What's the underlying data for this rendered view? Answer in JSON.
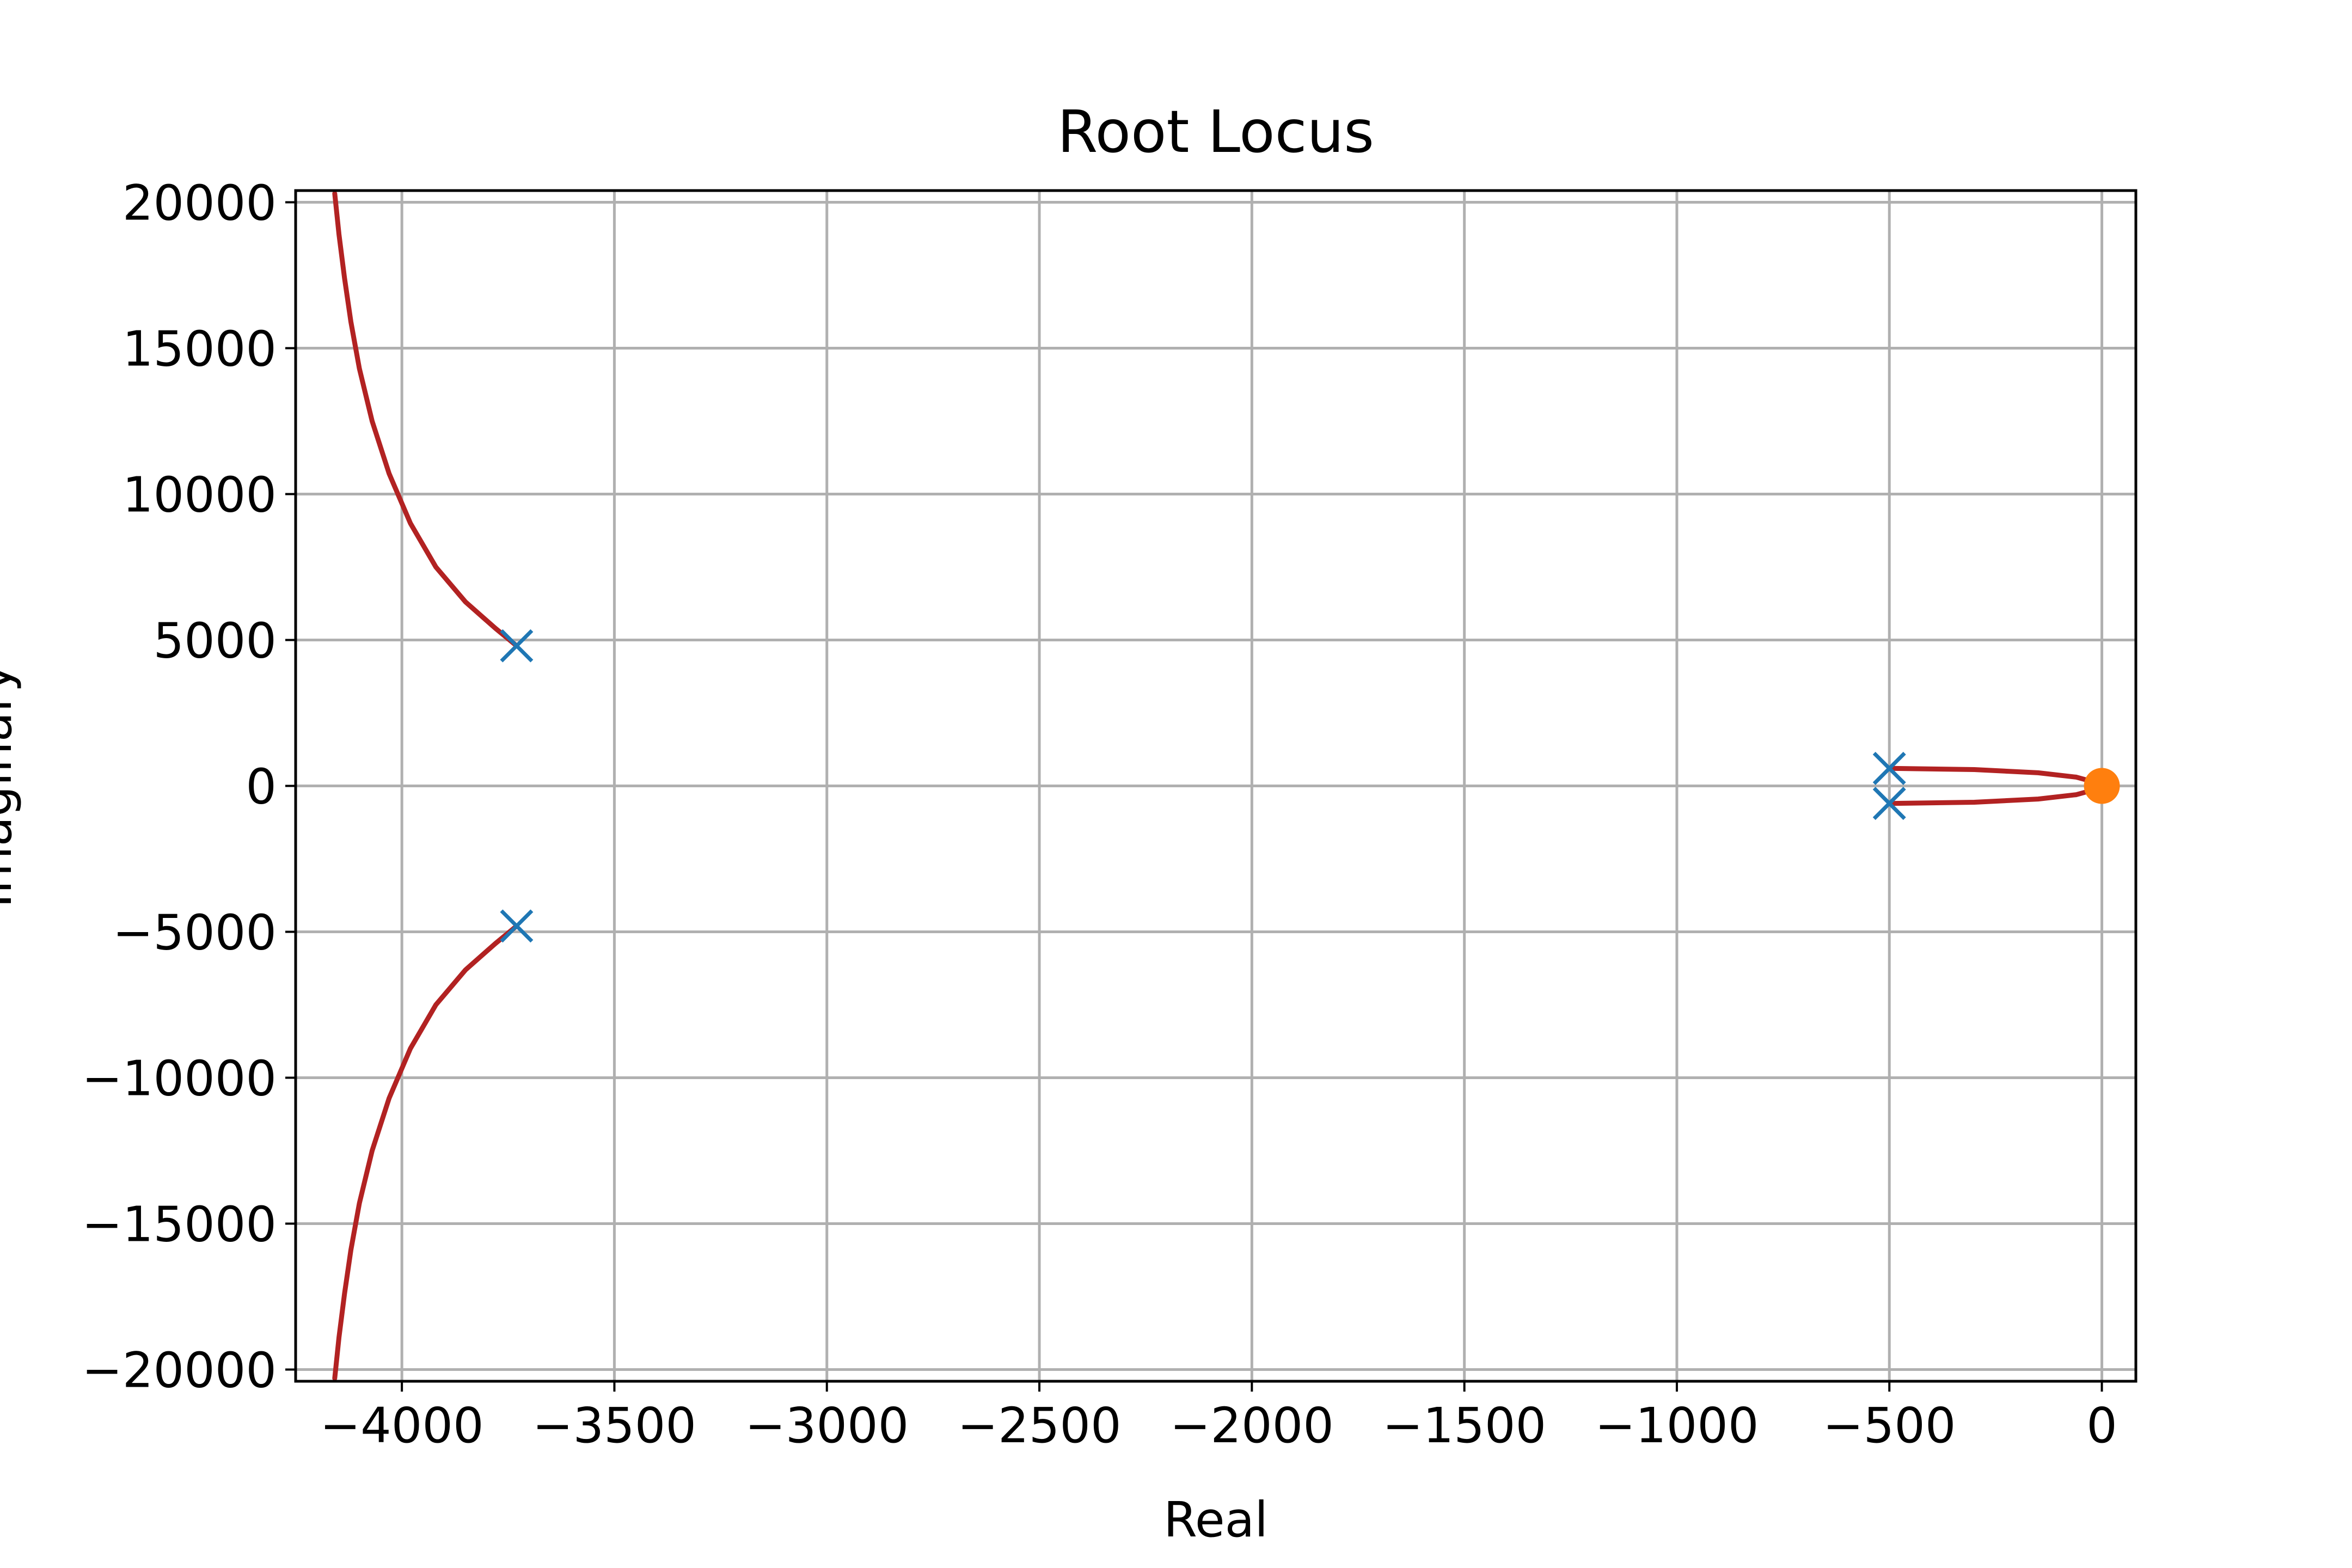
{
  "chart_data": {
    "type": "line",
    "title": "Root Locus",
    "xlabel": "Real",
    "ylabel": "Imaginary",
    "xlim": [
      -4250,
      80
    ],
    "ylim": [
      -20400,
      20400
    ],
    "grid": true,
    "x_ticks": [
      -4000,
      -3500,
      -3000,
      -2500,
      -2000,
      -1500,
      -1000,
      -500,
      0
    ],
    "y_ticks": [
      20000,
      15000,
      10000,
      5000,
      0,
      -5000,
      -10000,
      -15000,
      -20000
    ],
    "x_tick_labels": [
      "−4000",
      "−3500",
      "−3000",
      "−2500",
      "−2000",
      "−1500",
      "−1000",
      "−500",
      "0"
    ],
    "y_tick_labels": [
      "20000",
      "15000",
      "10000",
      "5000",
      "0",
      "−5000",
      "−10000",
      "−15000",
      "−20000"
    ],
    "locus_color": "#b22222",
    "pole_color": "#1f77b4",
    "zero_color": "#ff7f0e",
    "series": [
      {
        "x": [
          -3730,
          -3780,
          -3850,
          -3920,
          -3980,
          -4030,
          -4070,
          -4100,
          -4120,
          -4135,
          -4148,
          -4158
        ],
        "y": [
          4800,
          5400,
          6300,
          7500,
          9000,
          10700,
          12500,
          14300,
          15900,
          17400,
          18900,
          20300
        ]
      },
      {
        "x": [
          -3730,
          -3780,
          -3850,
          -3920,
          -3980,
          -4030,
          -4070,
          -4100,
          -4120,
          -4135,
          -4148,
          -4158
        ],
        "y": [
          -4800,
          -5400,
          -6300,
          -7500,
          -9000,
          -10700,
          -12500,
          -14300,
          -15900,
          -17400,
          -18900,
          -20300
        ]
      },
      {
        "x": [
          -500,
          -300,
          -150,
          -60,
          -15,
          0
        ],
        "y": [
          600,
          560,
          450,
          300,
          120,
          0
        ]
      },
      {
        "x": [
          -500,
          -300,
          -150,
          -60,
          -15,
          0
        ],
        "y": [
          -600,
          -560,
          -450,
          -300,
          -120,
          0
        ]
      }
    ],
    "poles": [
      {
        "x": -3730,
        "y": 4800
      },
      {
        "x": -3730,
        "y": -4800
      },
      {
        "x": -500,
        "y": 600
      },
      {
        "x": -500,
        "y": -600
      }
    ],
    "zeros": [
      {
        "x": 0,
        "y": 0
      }
    ]
  }
}
